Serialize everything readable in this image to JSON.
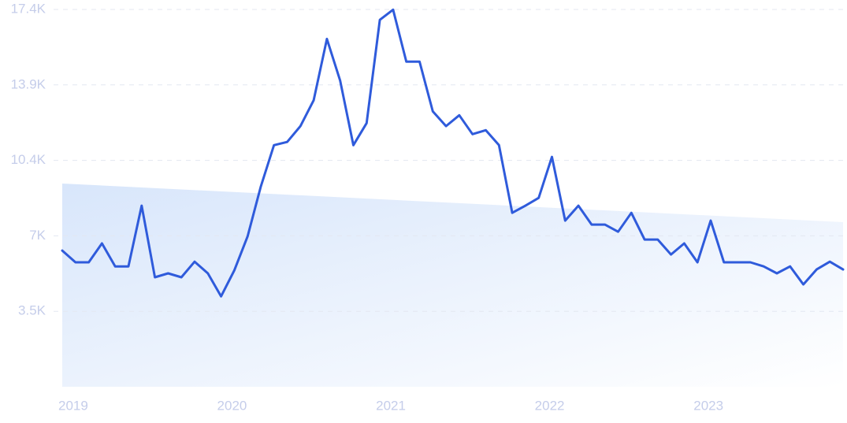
{
  "chart_data": {
    "type": "line",
    "categories": [
      "2019",
      null,
      null,
      null,
      null,
      null,
      null,
      null,
      null,
      null,
      null,
      null,
      "2020",
      null,
      null,
      null,
      null,
      null,
      null,
      null,
      null,
      null,
      null,
      null,
      "2021",
      null,
      null,
      null,
      null,
      null,
      null,
      null,
      null,
      null,
      null,
      null,
      "2022",
      null,
      null,
      null,
      null,
      null,
      null,
      null,
      null,
      null,
      null,
      null,
      "2023",
      null,
      null,
      null,
      null,
      null,
      null,
      null,
      null,
      null,
      null,
      null
    ],
    "series": [
      {
        "color": "#2f5bdb",
        "values": [
          6280,
          5740,
          5740,
          6610,
          5550,
          5550,
          8350,
          5050,
          5230,
          5050,
          5770,
          5230,
          4170,
          5370,
          6930,
          9220,
          11140,
          11290,
          12020,
          13210,
          16040,
          14120,
          11140,
          12160,
          16920,
          17390,
          14990,
          14990,
          12700,
          12020,
          12520,
          11650,
          11830,
          11140,
          8020,
          8350,
          8710,
          10600,
          7660,
          8350,
          7480,
          7480,
          7150,
          8020,
          6790,
          6790,
          6100,
          6610,
          5740,
          7660,
          5740,
          5740,
          5740,
          5550,
          5230,
          5550,
          4720,
          5410,
          5770,
          5410
        ]
      }
    ],
    "ylim": [
      0,
      17400
    ],
    "yticks": [
      {
        "value": 3480,
        "label": "3.5K"
      },
      {
        "value": 6960,
        "label": "7K"
      },
      {
        "value": 10440,
        "label": "10.4K"
      },
      {
        "value": 13920,
        "label": "13.9K"
      },
      {
        "value": 17400,
        "label": "17.4K"
      }
    ],
    "grid": true
  }
}
